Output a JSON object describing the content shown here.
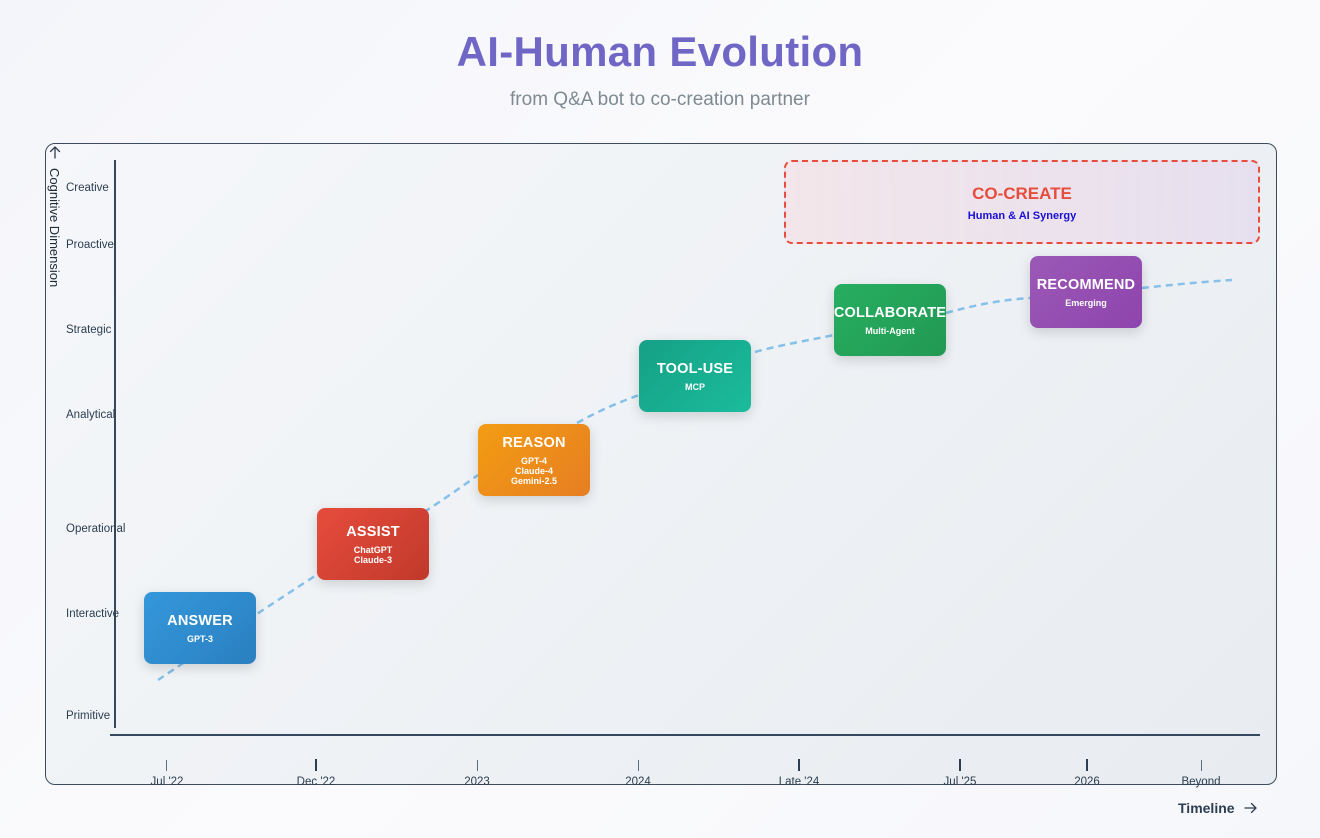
{
  "header": {
    "title": "AI-Human Evolution",
    "subtitle": "from Q&A bot to co-creation partner"
  },
  "axes": {
    "y_title": "Cognitive Dimension",
    "x_title": "Timeline",
    "y_levels": [
      "Creative",
      "Proactive",
      "Strategic",
      "Analytical",
      "Operational",
      "Interactive",
      "Primitive"
    ],
    "x_ticks": [
      "Jul '22",
      "Dec '22",
      "2023",
      "2024",
      "Late '24",
      "Jul '25",
      "2026",
      "Beyond"
    ]
  },
  "stages": [
    {
      "name": "ANSWER",
      "details": [
        "GPT-3"
      ],
      "color": "#3498db"
    },
    {
      "name": "ASSIST",
      "details": [
        "ChatGPT",
        "Claude-3"
      ],
      "color": "#e74c3c"
    },
    {
      "name": "REASON",
      "details": [
        "GPT-4",
        "Claude-4",
        "Gemini-2.5"
      ],
      "color": "#f39c12"
    },
    {
      "name": "TOOL-USE",
      "details": [
        "MCP"
      ],
      "color": "#16a085"
    },
    {
      "name": "COLLABORATE",
      "details": [
        "Multi-Agent"
      ],
      "color": "#27ae60"
    },
    {
      "name": "RECOMMEND",
      "details": [
        "Emerging"
      ],
      "color": "#9b59b6"
    }
  ],
  "goal": {
    "title": "CO-CREATE",
    "subtitle": "Human & AI Synergy",
    "border_color": "#e74c3c"
  },
  "colors": {
    "title": "#7066c6",
    "axis": "#34495e",
    "curve": "#85c1e9"
  },
  "icons": {
    "y_axis_arrow": "arrow-up-icon",
    "timeline_arrow": "arrow-right-icon"
  }
}
